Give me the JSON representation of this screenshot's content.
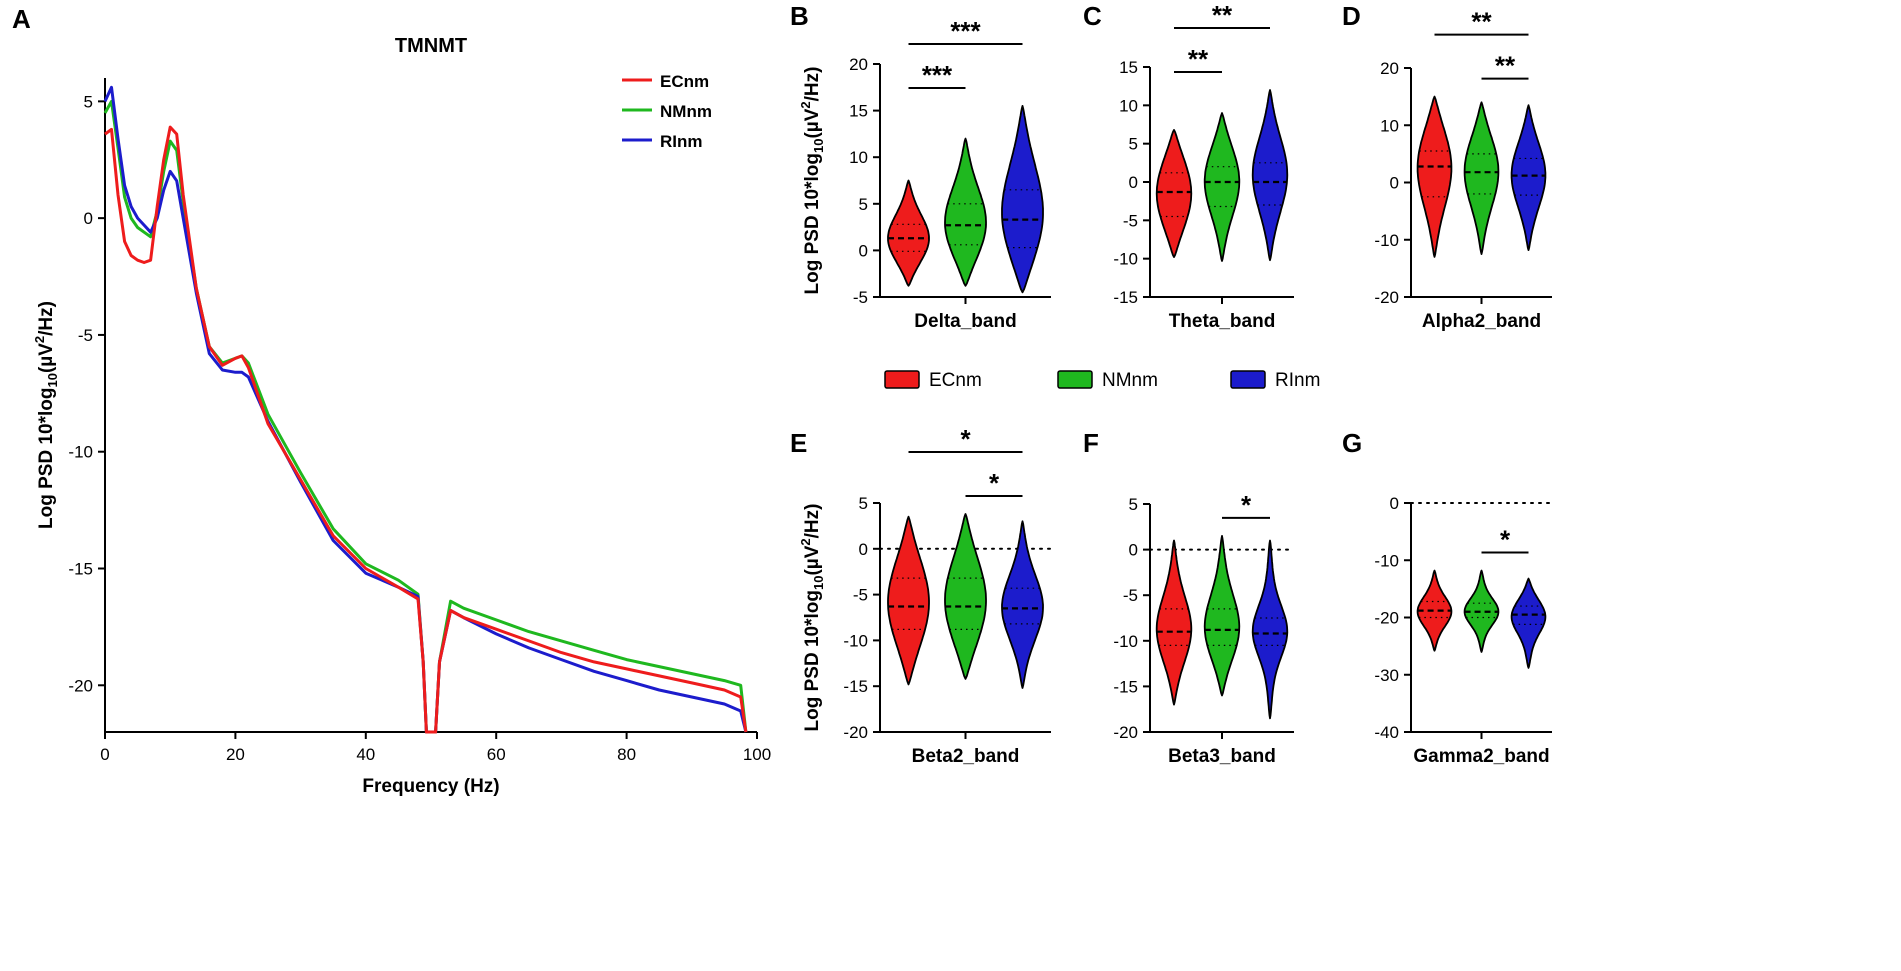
{
  "colors": {
    "ECnm": "#ee1c1c",
    "NMnm": "#1fb81f",
    "RInm": "#1c1ccc"
  },
  "legend": [
    {
      "label": "ECnm",
      "color": "#ee1c1c"
    },
    {
      "label": "NMnm",
      "color": "#1fb81f"
    },
    {
      "label": "RInm",
      "color": "#1c1ccc"
    }
  ],
  "chart_data": [
    {
      "panel": "A",
      "type": "line",
      "title": "TMNMT",
      "xlabel": "Frequency (Hz)",
      "ylabel": "Log PSD 10*log10(µV2/Hz)",
      "xlim": [
        0,
        100
      ],
      "ylim": [
        -22,
        6
      ],
      "xticks": [
        0,
        20,
        40,
        60,
        80,
        100
      ],
      "yticks": [
        5,
        0,
        -5,
        -10,
        -15,
        -20
      ],
      "series": [
        {
          "name": "ECnm",
          "x": [
            0,
            1,
            2,
            3,
            4,
            5,
            6,
            7,
            8,
            9,
            10,
            11,
            12,
            14,
            16,
            18,
            20,
            21,
            22,
            25,
            30,
            35,
            40,
            45,
            48,
            48.8,
            49.3,
            50.7,
            51.3,
            53,
            55,
            60,
            65,
            70,
            75,
            80,
            85,
            90,
            95,
            97.5,
            98.3
          ],
          "y": [
            3.6,
            3.8,
            1.0,
            -1.0,
            -1.6,
            -1.8,
            -1.9,
            -1.8,
            0.5,
            2.5,
            3.9,
            3.6,
            1.0,
            -3.0,
            -5.5,
            -6.3,
            -6.0,
            -5.9,
            -6.4,
            -8.8,
            -11.2,
            -13.6,
            -15.0,
            -15.8,
            -16.3,
            -19.0,
            -22.0,
            -22.0,
            -19.0,
            -16.8,
            -17.1,
            -17.6,
            -18.1,
            -18.6,
            -19.0,
            -19.3,
            -19.6,
            -19.9,
            -20.2,
            -20.5,
            -22.0
          ]
        },
        {
          "name": "NMnm",
          "x": [
            0,
            1,
            2,
            3,
            4,
            5,
            6,
            7,
            8,
            9,
            10,
            11,
            12,
            14,
            16,
            18,
            20,
            21,
            22,
            25,
            30,
            35,
            40,
            45,
            48,
            48.8,
            49.3,
            50.7,
            51.3,
            53,
            55,
            60,
            65,
            70,
            75,
            80,
            85,
            90,
            95,
            97.5,
            98.3
          ],
          "y": [
            4.5,
            5.0,
            3.0,
            0.9,
            0.0,
            -0.4,
            -0.6,
            -0.8,
            0.3,
            2.0,
            3.3,
            2.9,
            0.7,
            -3.0,
            -5.5,
            -6.2,
            -6.0,
            -5.9,
            -6.2,
            -8.4,
            -10.9,
            -13.3,
            -14.8,
            -15.5,
            -16.1,
            -19.0,
            -22.0,
            -22.0,
            -19.0,
            -16.4,
            -16.7,
            -17.2,
            -17.7,
            -18.1,
            -18.5,
            -18.9,
            -19.2,
            -19.5,
            -19.8,
            -20.0,
            -22.0
          ]
        },
        {
          "name": "RInm",
          "x": [
            0,
            1,
            2,
            3,
            4,
            5,
            6,
            7,
            8,
            9,
            10,
            11,
            12,
            14,
            16,
            18,
            20,
            21,
            22,
            25,
            30,
            35,
            40,
            45,
            48,
            48.8,
            49.3,
            50.7,
            51.3,
            53,
            55,
            60,
            65,
            70,
            75,
            80,
            85,
            90,
            95,
            97.5,
            98.3
          ],
          "y": [
            5.0,
            5.6,
            3.4,
            1.4,
            0.5,
            0.0,
            -0.3,
            -0.6,
            0.0,
            1.2,
            2.0,
            1.6,
            0.0,
            -3.2,
            -5.8,
            -6.5,
            -6.6,
            -6.6,
            -6.8,
            -8.7,
            -11.3,
            -13.8,
            -15.2,
            -15.8,
            -16.2,
            -19.0,
            -22.0,
            -22.0,
            -19.0,
            -16.8,
            -17.1,
            -17.8,
            -18.4,
            -18.9,
            -19.4,
            -19.8,
            -20.2,
            -20.5,
            -20.8,
            -21.1,
            -22.0
          ]
        }
      ]
    },
    {
      "panel": "B",
      "type": "violin",
      "xlabel": "Delta_band",
      "ylabel": "Log PSD 10*log10(µV2/Hz)",
      "ylim": [
        -5,
        20
      ],
      "yticks": [
        20,
        15,
        10,
        5,
        0,
        -5
      ],
      "zero_line": false,
      "groups": [
        {
          "name": "ECnm",
          "median": 1.3,
          "q1": -0.1,
          "q3": 2.8,
          "min": -3.8,
          "max": 7.5,
          "mode": 1.0
        },
        {
          "name": "NMnm",
          "median": 2.7,
          "q1": 0.6,
          "q3": 5.0,
          "min": -3.8,
          "max": 12.0,
          "mode": 2.3
        },
        {
          "name": "RInm",
          "median": 3.3,
          "q1": 0.3,
          "q3": 6.5,
          "min": -4.5,
          "max": 15.5,
          "mode": 3.0
        }
      ],
      "significance": [
        {
          "label": "***",
          "from": 0,
          "to": 1,
          "level": 1
        },
        {
          "label": "***",
          "from": 0,
          "to": 2,
          "level": 2
        }
      ]
    },
    {
      "panel": "C",
      "type": "violin",
      "xlabel": "Theta_band",
      "ylim": [
        -15,
        15
      ],
      "yticks": [
        15,
        10,
        5,
        0,
        -5,
        -10,
        -15
      ],
      "zero_line": false,
      "groups": [
        {
          "name": "ECnm",
          "median": -1.3,
          "q1": -4.5,
          "q3": 1.2,
          "min": -9.8,
          "max": 6.8,
          "mode": -1.5
        },
        {
          "name": "NMnm",
          "median": 0.0,
          "q1": -3.2,
          "q3": 2.0,
          "min": -10.3,
          "max": 9.0,
          "mode": 0.5
        },
        {
          "name": "RInm",
          "median": 0.0,
          "q1": -3.0,
          "q3": 2.5,
          "min": -10.2,
          "max": 12.0,
          "mode": 1.0
        }
      ],
      "significance": [
        {
          "label": "**",
          "from": 0,
          "to": 1,
          "level": 1
        },
        {
          "label": "**",
          "from": 0,
          "to": 2,
          "level": 2
        }
      ]
    },
    {
      "panel": "D",
      "type": "violin",
      "xlabel": "Alpha2_band",
      "ylim": [
        -20,
        20
      ],
      "yticks": [
        20,
        10,
        0,
        -10,
        -20
      ],
      "zero_line": false,
      "groups": [
        {
          "name": "ECnm",
          "median": 2.8,
          "q1": -2.5,
          "q3": 5.5,
          "min": -13.0,
          "max": 15.0,
          "mode": 3.5
        },
        {
          "name": "NMnm",
          "median": 1.8,
          "q1": -2.0,
          "q3": 5.0,
          "min": -12.5,
          "max": 14.0,
          "mode": 2.5
        },
        {
          "name": "RInm",
          "median": 1.2,
          "q1": -2.2,
          "q3": 4.2,
          "min": -11.8,
          "max": 13.5,
          "mode": 1.5
        }
      ],
      "significance": [
        {
          "label": "**",
          "from": 1,
          "to": 2,
          "level": 1
        },
        {
          "label": "**",
          "from": 0,
          "to": 2,
          "level": 2
        }
      ]
    },
    {
      "panel": "E",
      "type": "violin",
      "xlabel": "Beta2_band",
      "ylabel": "Log PSD 10*log10(µV2/Hz)",
      "ylim": [
        -20,
        5
      ],
      "yticks": [
        5,
        0,
        -5,
        -10,
        -15,
        -20
      ],
      "zero_line": true,
      "groups": [
        {
          "name": "ECnm",
          "median": -6.3,
          "q1": -8.8,
          "q3": -3.2,
          "min": -14.8,
          "max": 3.5,
          "mode": -6.0
        },
        {
          "name": "NMnm",
          "median": -6.3,
          "q1": -8.8,
          "q3": -3.2,
          "min": -14.2,
          "max": 3.8,
          "mode": -6.0
        },
        {
          "name": "RInm",
          "median": -6.5,
          "q1": -8.2,
          "q3": -4.3,
          "min": -15.2,
          "max": 3.0,
          "mode": -6.5
        }
      ],
      "significance": [
        {
          "label": "*",
          "from": 1,
          "to": 2,
          "level": 1
        },
        {
          "label": "*",
          "from": 0,
          "to": 2,
          "level": 2
        }
      ]
    },
    {
      "panel": "F",
      "type": "violin",
      "xlabel": "Beta3_band",
      "ylim": [
        -20,
        5
      ],
      "yticks": [
        5,
        0,
        -5,
        -10,
        -15,
        -20
      ],
      "zero_line": true,
      "groups": [
        {
          "name": "ECnm",
          "median": -9.0,
          "q1": -10.5,
          "q3": -6.5,
          "min": -17.0,
          "max": 1.0,
          "mode": -9.0
        },
        {
          "name": "NMnm",
          "median": -8.8,
          "q1": -10.5,
          "q3": -6.5,
          "min": -16.0,
          "max": 1.5,
          "mode": -9.0
        },
        {
          "name": "RInm",
          "median": -9.2,
          "q1": -10.5,
          "q3": -7.5,
          "min": -18.5,
          "max": 1.0,
          "mode": -9.0
        }
      ],
      "significance": [
        {
          "label": "*",
          "from": 1,
          "to": 2,
          "level": 1
        }
      ]
    },
    {
      "panel": "G",
      "type": "violin",
      "xlabel": "Gamma2_band",
      "ylim": [
        -40,
        0
      ],
      "yticks": [
        0,
        -10,
        -20,
        -30,
        -40
      ],
      "zero_line": true,
      "groups": [
        {
          "name": "ECnm",
          "median": -18.8,
          "q1": -20.0,
          "q3": -17.2,
          "min": -25.8,
          "max": -11.8,
          "mode": -19.0
        },
        {
          "name": "NMnm",
          "median": -19.0,
          "q1": -20.0,
          "q3": -17.5,
          "min": -26.0,
          "max": -11.8,
          "mode": -19.0
        },
        {
          "name": "RInm",
          "median": -19.5,
          "q1": -21.2,
          "q3": -18.0,
          "min": -28.8,
          "max": -13.2,
          "mode": -19.5
        }
      ],
      "significance": [
        {
          "label": "*",
          "from": 1,
          "to": 2,
          "level": 1
        }
      ]
    }
  ]
}
